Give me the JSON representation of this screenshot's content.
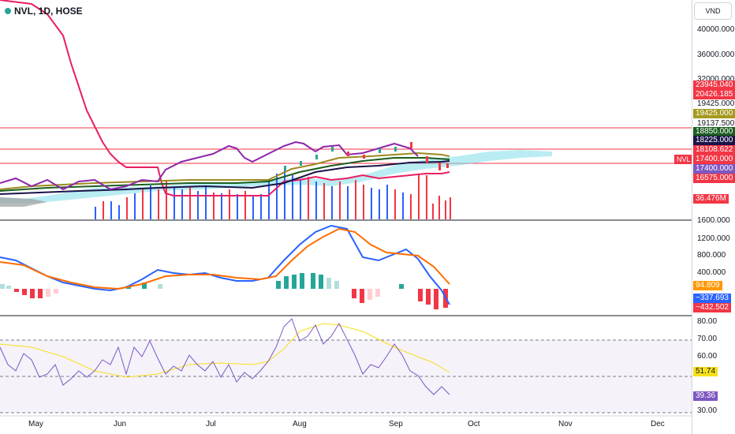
{
  "header": {
    "title": "NVL, 1D, HOSE"
  },
  "currency": {
    "label": "VND"
  },
  "colors": {
    "up": "#26a69a",
    "down": "#f23645",
    "bg": "#ffffff",
    "grid": "#e0e3eb"
  },
  "price_scale": {
    "ticks": [
      "40000.000",
      "36000.000",
      "32000.000",
      "19425.000",
      "19137.500",
      "1600.000",
      "1200.000",
      "800.000",
      "400.000",
      "80.00",
      "70.00",
      "60.00",
      "30.00"
    ],
    "badges": [
      {
        "value": "23945.040",
        "color": "#f23645"
      },
      {
        "value": "20426.185",
        "color": "#f23645"
      },
      {
        "value": "19425.000",
        "color": "#a59a1f"
      },
      {
        "value": "18850.000",
        "color": "#1b5e20"
      },
      {
        "value": "18225.000",
        "color": "#1a1449"
      },
      {
        "value": "18108.622",
        "color": "#f23645"
      },
      {
        "value": "17400.000",
        "color": "#f23645"
      },
      {
        "value": "17400.000",
        "color": "#7e57c2"
      },
      {
        "value": "16575.000",
        "color": "#f23645"
      },
      {
        "value": "36.476M",
        "color": "#f23645"
      },
      {
        "value": "94.809",
        "color": "#ff9800"
      },
      {
        "value": "−337.693",
        "color": "#2962ff"
      },
      {
        "value": "−432.502",
        "color": "#f23645"
      },
      {
        "value": "51.74",
        "color": "#f7e018"
      },
      {
        "value": "39.36",
        "color": "#7e57c2"
      }
    ]
  },
  "symbol_tag": "NVL",
  "time_axis": [
    "May",
    "Jun",
    "Jul",
    "Aug",
    "Sep",
    "Oct",
    "Nov",
    "Dec"
  ]
}
